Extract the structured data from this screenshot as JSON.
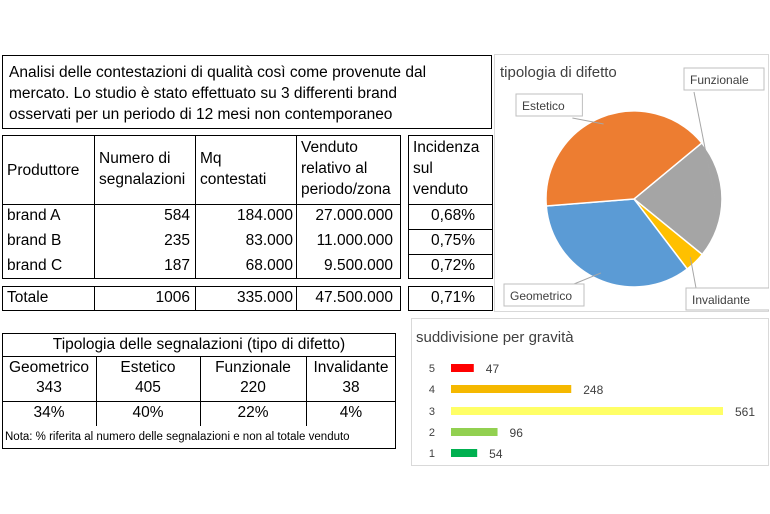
{
  "intro": {
    "lines": [
      "Analisi delle contestazioni di qualità così come provenute dal",
      "mercato. Lo studio è stato effettuato su 3 differenti brand",
      "osservati per un periodo di 12 mesi non contemporaneo"
    ]
  },
  "table": {
    "headers": {
      "produttore": "Produttore",
      "segnalazioni": [
        "Numero di",
        "segnalazioni"
      ],
      "mq": [
        "Mq",
        "contestati"
      ],
      "venduto": [
        "Venduto",
        "relativo al",
        "periodo/zona"
      ],
      "incidenza": [
        "Incidenza",
        "sul",
        "venduto"
      ]
    },
    "rows": [
      {
        "brand": "brand A",
        "segnalazioni": "584",
        "mq": "184.000",
        "venduto": "27.000.000",
        "incidenza": "0,68%"
      },
      {
        "brand": "brand B",
        "segnalazioni": "235",
        "mq": "83.000",
        "venduto": "11.000.000",
        "incidenza": "0,75%"
      },
      {
        "brand": "brand C",
        "segnalazioni": "187",
        "mq": "68.000",
        "venduto": "9.500.000",
        "incidenza": "0,72%"
      }
    ],
    "totale": {
      "label": "Totale",
      "segnalazioni": "1006",
      "mq": "335.000",
      "venduto": "47.500.000",
      "incidenza": "0,71%"
    }
  },
  "tipologia": {
    "title": "Tipologia delle segnalazioni (tipo di difetto)",
    "columns": [
      {
        "name": "Geometrico",
        "count": "343",
        "pct": "34%"
      },
      {
        "name": "Estetico",
        "count": "405",
        "pct": "40%"
      },
      {
        "name": "Funzionale",
        "count": "220",
        "pct": "22%"
      },
      {
        "name": "Invalidante",
        "count": "38",
        "pct": "4%"
      }
    ],
    "note": "Nota: % riferita al numero delle segnalazioni e non al totale venduto"
  },
  "chart_data": [
    {
      "type": "pie",
      "title": "tipologia di difetto",
      "categories": [
        "Estetico",
        "Funzionale",
        "Invalidante",
        "Geometrico"
      ],
      "values": [
        405,
        220,
        38,
        343
      ],
      "colors": [
        "#ED7D31",
        "#A5A5A5",
        "#FFC000",
        "#5B9BD5"
      ]
    },
    {
      "type": "bar",
      "orientation": "horizontal",
      "title": "suddivisione per gravità",
      "categories": [
        "5",
        "4",
        "3",
        "2",
        "1"
      ],
      "values": [
        47,
        248,
        561,
        96,
        54
      ],
      "colors": [
        "#FF0000",
        "#F5B800",
        "#FFFF66",
        "#92D050",
        "#00B050"
      ]
    }
  ]
}
